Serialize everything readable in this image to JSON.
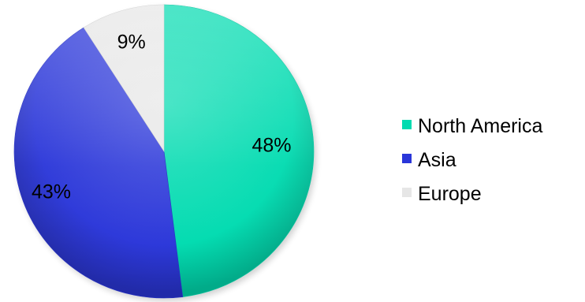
{
  "chart_data": {
    "type": "pie",
    "title": "",
    "start_angle": "12 o'clock",
    "direction": "clockwise",
    "legend_position": "right",
    "slices": [
      {
        "label": "North America",
        "value": 48,
        "data_label": "48%",
        "color": "#00dbb0"
      },
      {
        "label": "Asia",
        "value": 43,
        "data_label": "43%",
        "color": "#2a36d9"
      },
      {
        "label": "Europe",
        "value": 9,
        "data_label": "9%",
        "color": "#e6e6e6"
      }
    ]
  }
}
